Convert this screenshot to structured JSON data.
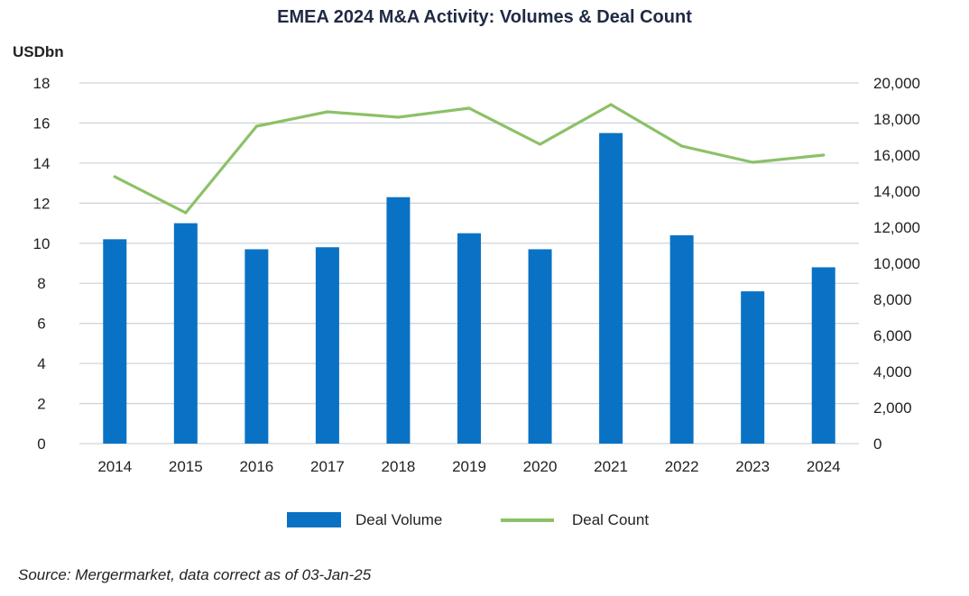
{
  "title": "EMEA 2024 M&A Activity: Volumes & Deal Count",
  "y_left_label": "USDbn",
  "source": "Source: Mergermarket, data correct as of 03-Jan-25",
  "colors": {
    "bar": "#0a72c4",
    "line": "#8cc167",
    "grid": "#cfd5dc",
    "text": "#222222"
  },
  "chart_data": {
    "type": "bar",
    "categories": [
      "2014",
      "2015",
      "2016",
      "2017",
      "2018",
      "2019",
      "2020",
      "2021",
      "2022",
      "2023",
      "2024"
    ],
    "series": [
      {
        "name": "Deal Volume",
        "type": "bar",
        "axis": "left",
        "values": [
          10.2,
          11.0,
          9.7,
          9.8,
          12.3,
          10.5,
          9.7,
          15.5,
          10.4,
          7.6,
          8.8
        ]
      },
      {
        "name": "Deal Count",
        "type": "line",
        "axis": "right",
        "values": [
          14800,
          12800,
          17600,
          18400,
          18100,
          18600,
          16600,
          18800,
          16500,
          15600,
          16000
        ]
      }
    ],
    "ylabel": "USDbn",
    "ylim": [
      0,
      18
    ],
    "yticks": [
      "0",
      "2",
      "4",
      "6",
      "8",
      "10",
      "12",
      "14",
      "16",
      "18"
    ],
    "y2lim": [
      0,
      20000
    ],
    "y2ticks": [
      "0",
      "2,000",
      "4,000",
      "6,000",
      "8,000",
      "10,000",
      "12,000",
      "14,000",
      "16,000",
      "18,000",
      "20,000"
    ],
    "grid": true,
    "legend": "bottom"
  }
}
